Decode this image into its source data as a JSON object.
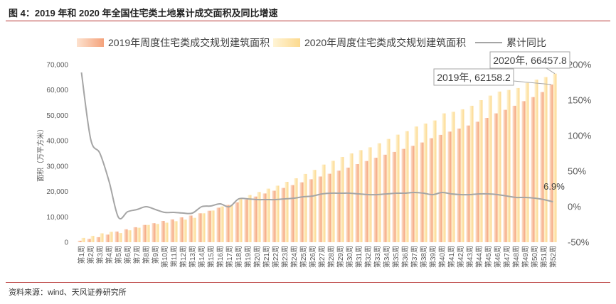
{
  "source_note": "资料来源：wind、天风证券研究所",
  "chart_data": {
    "type": "bar",
    "title": "图 4：2019 年和 2020 年全国住宅类土地累计成交面积及同比增速",
    "legend": "top",
    "grid": false,
    "ylabel": "面积（万平方米）",
    "ylim": [
      0,
      70000
    ],
    "yticks": [
      "0",
      "10,000",
      "20,000",
      "30,000",
      "40,000",
      "50,000",
      "60,000",
      "70,000"
    ],
    "y2lim": [
      -50,
      200
    ],
    "y2ticks": [
      "-50%",
      "0%",
      "50%",
      "100%",
      "150%",
      "200%"
    ],
    "categories": [
      "第1周",
      "第2周",
      "第3周",
      "第4周",
      "第5周",
      "第6周",
      "第7周",
      "第8周",
      "第9周",
      "第10周",
      "第11周",
      "第12周",
      "第13周",
      "第14周",
      "第15周",
      "第16周",
      "第17周",
      "第18周",
      "第19周",
      "第20周",
      "第21周",
      "第22周",
      "第23周",
      "第24周",
      "第25周",
      "第26周",
      "第27周",
      "第28周",
      "第29周",
      "第30周",
      "第31周",
      "第32周",
      "第33周",
      "第34周",
      "第35周",
      "第36周",
      "第37周",
      "第38周",
      "第39周",
      "第40周",
      "第41周",
      "第42周",
      "第43周",
      "第44周",
      "第45周",
      "第46周",
      "第47周",
      "第48周",
      "第49周",
      "第50周",
      "第51周",
      "第52周"
    ],
    "series": [
      {
        "name": "2019年周度住宅类成交规划建筑面积",
        "type": "bar",
        "axis": "left",
        "color": "#f4a27b",
        "values": [
          600,
          1300,
          2000,
          3000,
          4200,
          5100,
          5900,
          6800,
          7500,
          8400,
          9000,
          9800,
          10500,
          11400,
          12400,
          13600,
          14700,
          15700,
          16800,
          18000,
          19200,
          20300,
          21400,
          22500,
          23600,
          24800,
          25900,
          27000,
          28200,
          29400,
          30800,
          32000,
          33300,
          34500,
          35600,
          36800,
          38000,
          39300,
          41000,
          42300,
          43600,
          44800,
          46000,
          47500,
          49000,
          50800,
          52200,
          53800,
          55600,
          57200,
          59200,
          62158.2
        ]
      },
      {
        "name": "2020年周度住宅类成交规划建筑面积",
        "type": "bar",
        "axis": "left",
        "color": "#fcd98e",
        "values": [
          1700,
          2500,
          3500,
          4100,
          3600,
          4700,
          5700,
          6800,
          7200,
          7700,
          8300,
          8900,
          9600,
          11400,
          12500,
          14100,
          14700,
          17400,
          18600,
          19800,
          21100,
          22300,
          23800,
          25200,
          26900,
          28500,
          30600,
          32100,
          33600,
          35000,
          36300,
          37400,
          39000,
          40700,
          42400,
          43800,
          45600,
          46800,
          48000,
          50800,
          51400,
          52400,
          53800,
          56000,
          57800,
          59400,
          60000,
          60800,
          62800,
          64100,
          65100,
          66457.8
        ]
      },
      {
        "name": "累计同比",
        "type": "line",
        "axis": "right",
        "color": "#a5a5a5",
        "values": [
          189,
          95,
          75,
          35,
          -15,
          -7,
          -4,
          0,
          -4,
          -8,
          -8,
          -9,
          -9,
          0,
          1,
          4,
          0,
          11,
          11,
          10,
          10,
          10,
          11,
          12,
          14,
          15,
          18,
          19,
          19,
          19,
          18,
          17,
          17,
          18,
          19,
          19,
          20,
          19,
          17,
          20,
          18,
          17,
          17,
          18,
          18,
          17,
          15,
          13,
          13,
          12,
          10,
          6.9
        ]
      }
    ],
    "annotations": {
      "s2020_last": "2020年, 66457.8",
      "s2019_last": "2019年, 62158.2",
      "yoy_last": "6.9%"
    }
  }
}
